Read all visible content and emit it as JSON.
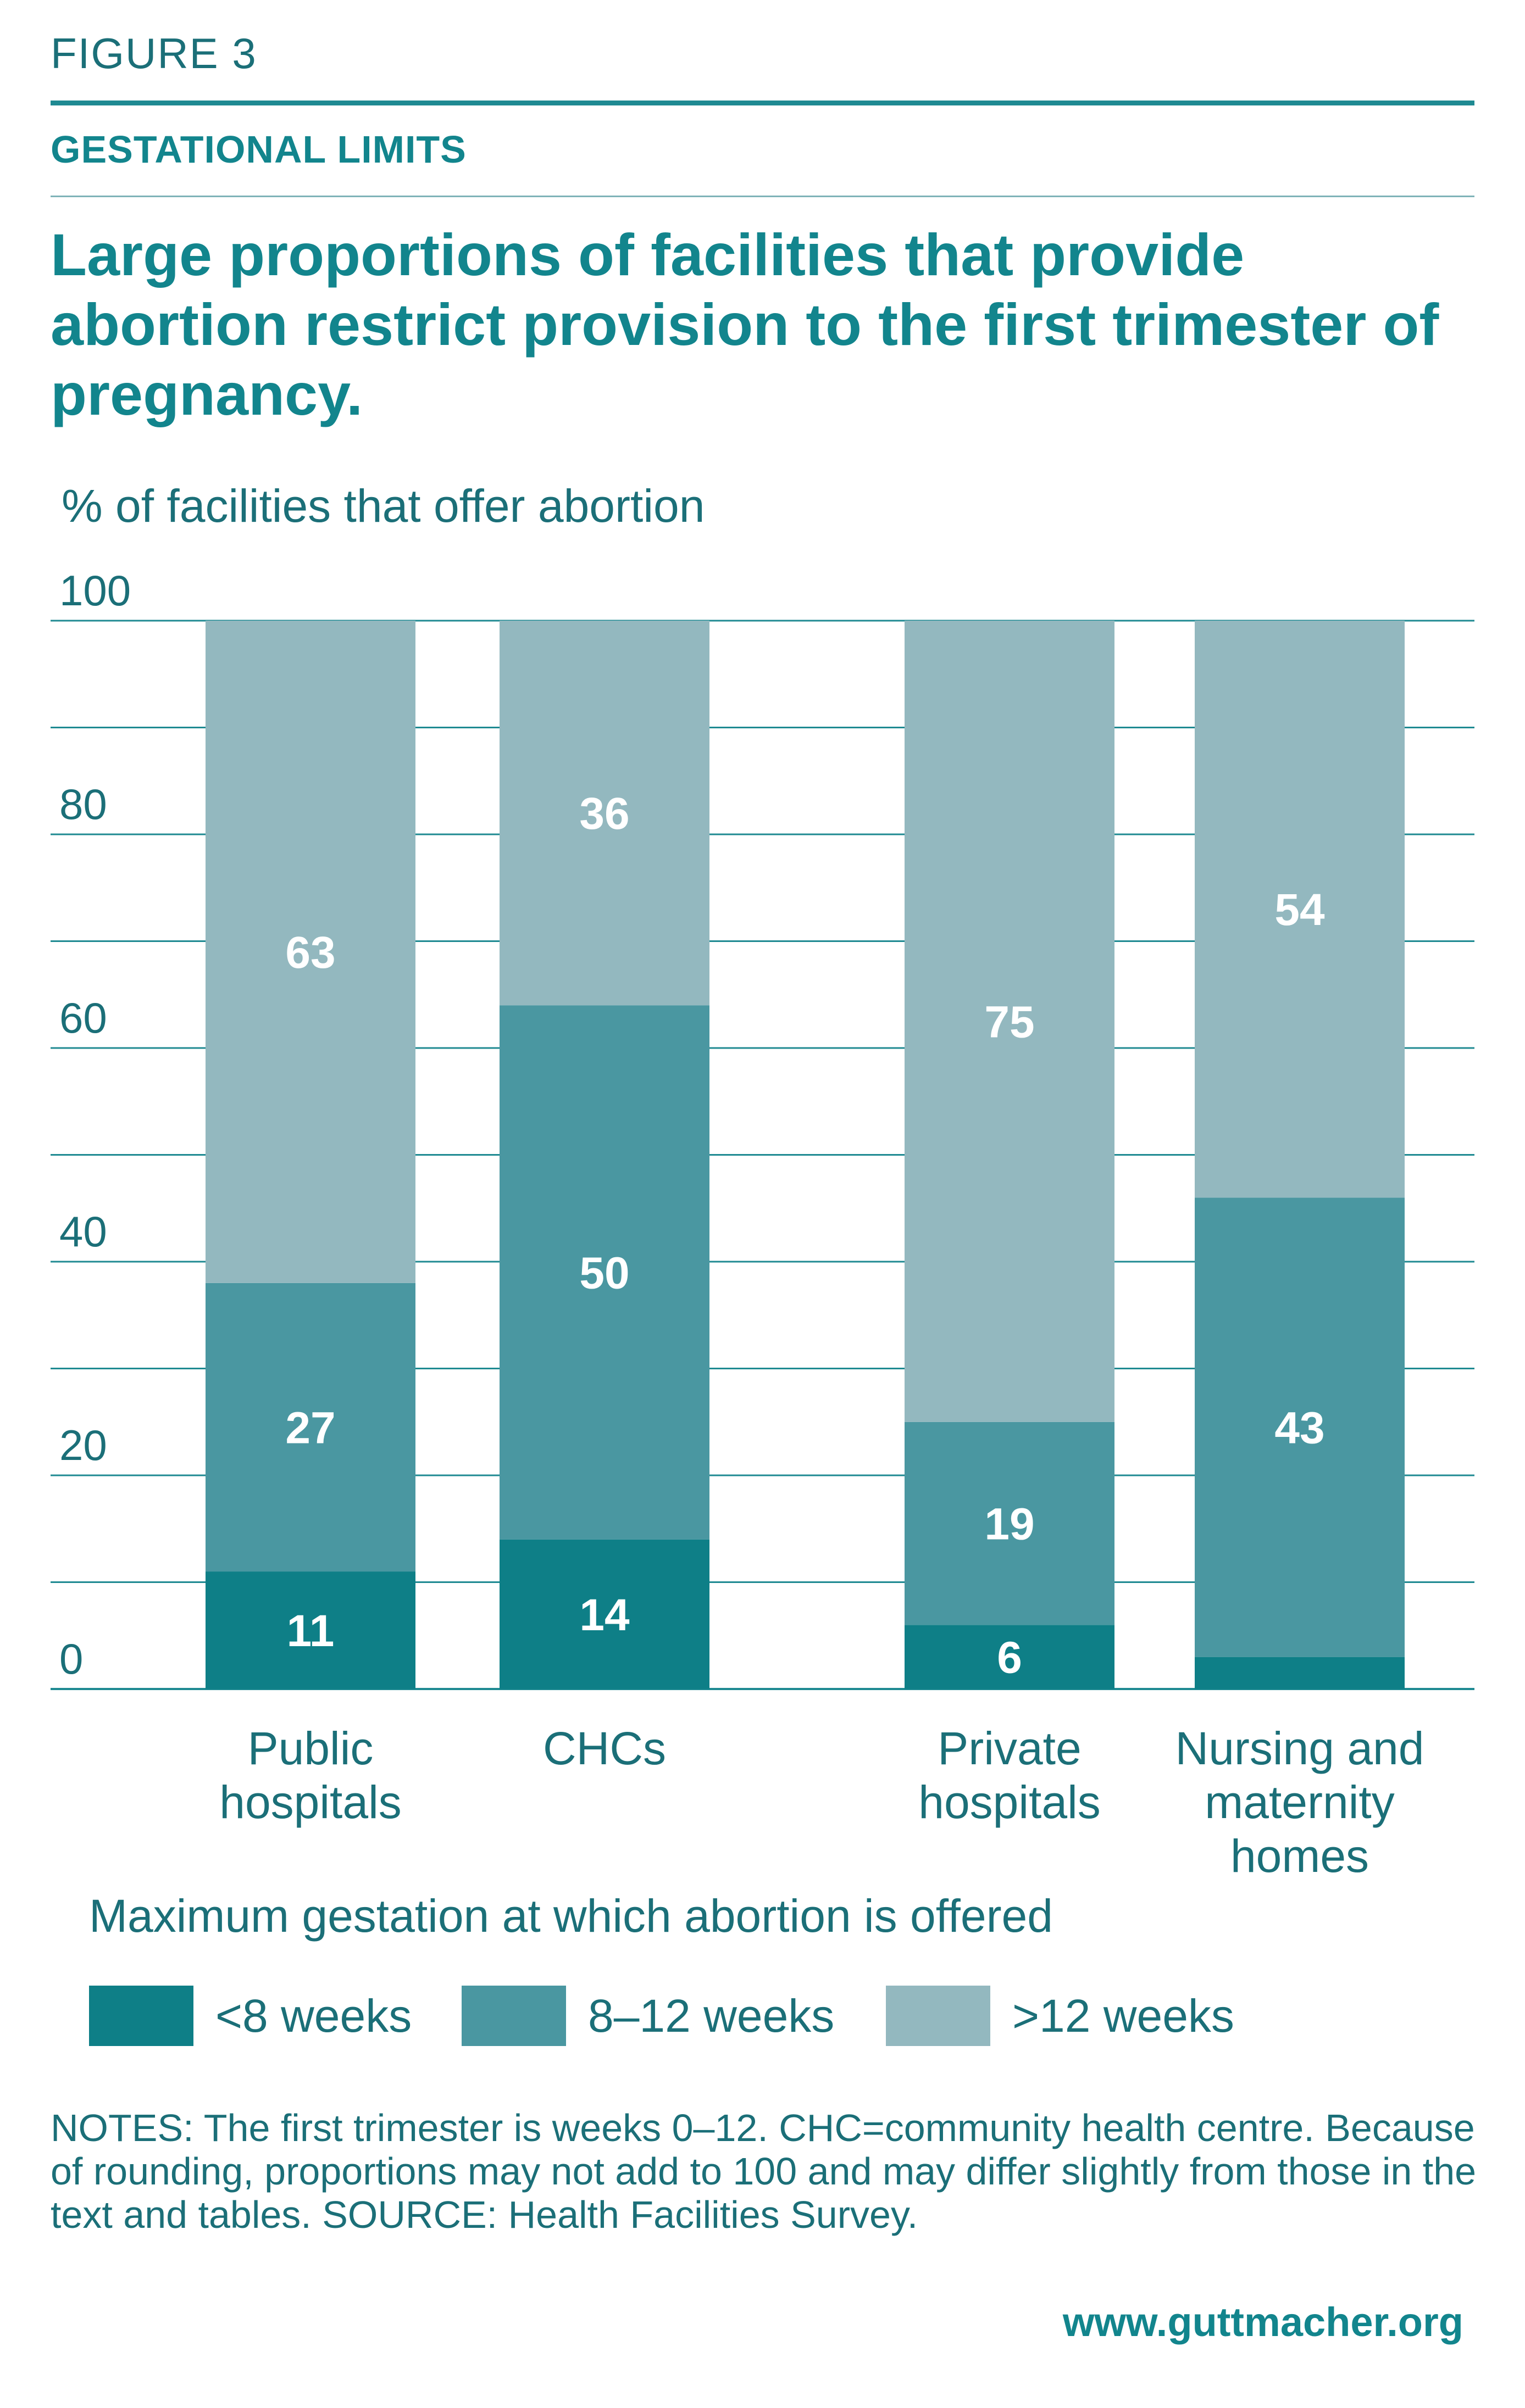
{
  "figure_label": "FIGURE 3",
  "section_title": "GESTATIONAL LIMITS",
  "headline": "Large proportions of facilities that provide abortion restrict provision to the first trimester of pregnancy.",
  "colors": {
    "lt8": "#0e7f87",
    "w8_12": "#4a97a1",
    "gt12": "#93b8bf",
    "grid": "#1f8a92"
  },
  "chart_data": {
    "type": "bar",
    "stacked": true,
    "ylabel": "% of facilities that offer abortion",
    "ylim": [
      0,
      100
    ],
    "yticks": [
      "0",
      "20",
      "40",
      "60",
      "80",
      "100"
    ],
    "grid": true,
    "categories": [
      [
        "Public",
        "hospitals"
      ],
      [
        "CHCs"
      ],
      [
        "Private",
        "hospitals"
      ],
      [
        "Nursing and",
        "maternity",
        "homes"
      ]
    ],
    "series": [
      {
        "name": "<8 weeks",
        "values": [
          11,
          14,
          6,
          3
        ],
        "labels": [
          "11",
          "14",
          "6",
          ""
        ]
      },
      {
        "name": "8–12 weeks",
        "values": [
          27,
          50,
          19,
          43
        ],
        "labels": [
          "27",
          "50",
          "19",
          "43"
        ]
      },
      {
        "name": ">12 weeks",
        "values": [
          63,
          36,
          75,
          54
        ],
        "labels": [
          "63",
          "36",
          "75",
          "54"
        ]
      }
    ],
    "legend_title": "Maximum gestation at which abortion is offered",
    "legend_position": "bottom"
  },
  "notes": "NOTES: The first trimester is weeks 0–12. CHC=community health centre. Because of rounding, proportions may not add to 100 and may differ slightly from those in the text and tables. SOURCE: Health Facilities Survey.",
  "footer": "www.guttmacher.org"
}
